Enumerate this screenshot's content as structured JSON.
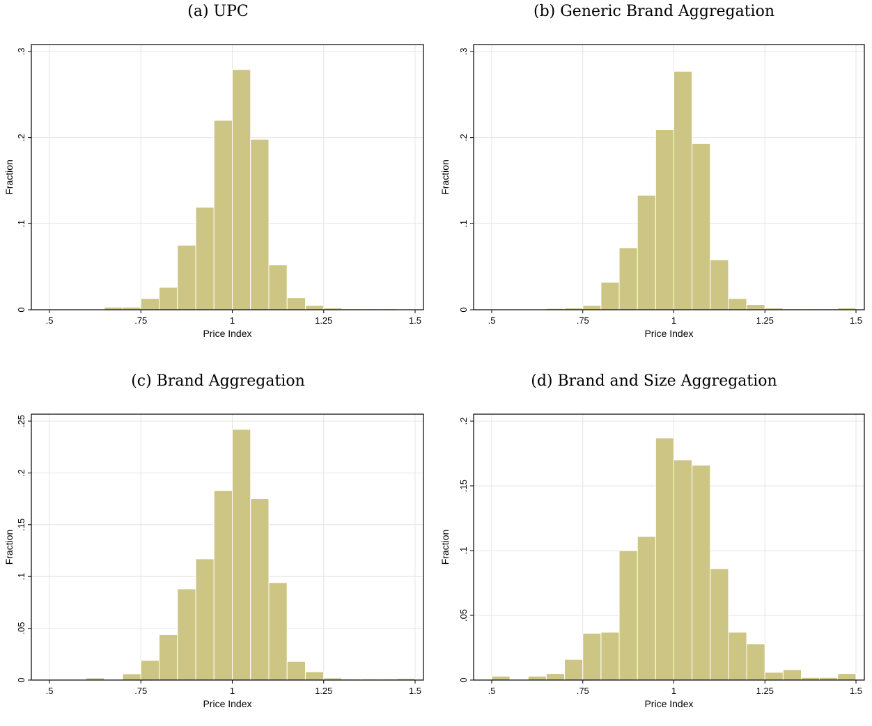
{
  "colors": {
    "bar_fill": "#CCC583",
    "bar_stroke": "#ffffff",
    "grid": "#E4E4E4",
    "frame": "#000000"
  },
  "chart_data": [
    {
      "id": "a",
      "title": "(a) UPC",
      "type": "bar",
      "xlabel": "Price Index",
      "ylabel": "Fraction",
      "xlim": [
        0.5,
        1.5
      ],
      "ylim": [
        0,
        0.3
      ],
      "xticks": [
        0.5,
        0.75,
        1,
        1.25,
        1.5
      ],
      "xtick_labels": [
        ".5",
        ".75",
        "1",
        "1.25",
        "1.5"
      ],
      "yticks": [
        0,
        0.1,
        0.2,
        0.3
      ],
      "ytick_labels": [
        "0",
        ".1",
        ".2",
        ".3"
      ],
      "grid": true,
      "bin_start": 0.5,
      "bin_width": 0.05,
      "values": [
        0.0005,
        0.0005,
        0.0005,
        0.003,
        0.003,
        0.013,
        0.026,
        0.075,
        0.119,
        0.22,
        0.279,
        0.198,
        0.052,
        0.014,
        0.005,
        0.002,
        0.001,
        0.001,
        0.001,
        0.0005
      ]
    },
    {
      "id": "b",
      "title": "(b) Generic Brand Aggregation",
      "type": "bar",
      "xlabel": "Price Index",
      "ylabel": "Fraction",
      "xlim": [
        0.5,
        1.5
      ],
      "ylim": [
        0,
        0.3
      ],
      "xticks": [
        0.5,
        0.75,
        1,
        1.25,
        1.5
      ],
      "xtick_labels": [
        ".5",
        ".75",
        "1",
        "1.25",
        "1.5"
      ],
      "yticks": [
        0,
        0.1,
        0.2,
        0.3
      ],
      "ytick_labels": [
        "0",
        ".1",
        ".2",
        ".3"
      ],
      "grid": true,
      "bin_start": 0.5,
      "bin_width": 0.05,
      "values": [
        0.0005,
        0.0005,
        0.0005,
        0.0015,
        0.002,
        0.005,
        0.032,
        0.072,
        0.133,
        0.209,
        0.277,
        0.193,
        0.058,
        0.013,
        0.006,
        0.002,
        0.001,
        0.001,
        0.001,
        0.002
      ]
    },
    {
      "id": "c",
      "title": "(c) Brand Aggregation",
      "type": "bar",
      "xlabel": "Price Index",
      "ylabel": "Fraction",
      "xlim": [
        0.5,
        1.5
      ],
      "ylim": [
        0,
        0.25
      ],
      "xticks": [
        0.5,
        0.75,
        1,
        1.25,
        1.5
      ],
      "xtick_labels": [
        ".5",
        ".75",
        "1",
        "1.25",
        "1.5"
      ],
      "yticks": [
        0,
        0.05,
        0.1,
        0.15,
        0.2,
        0.25
      ],
      "ytick_labels": [
        "0",
        ".05",
        ".1",
        ".15",
        ".2",
        ".25"
      ],
      "grid": true,
      "bin_start": 0.5,
      "bin_width": 0.05,
      "values": [
        0.0005,
        0.0005,
        0.002,
        0.0005,
        0.006,
        0.019,
        0.044,
        0.088,
        0.117,
        0.183,
        0.242,
        0.175,
        0.094,
        0.018,
        0.008,
        0.002,
        0.001,
        0.001,
        0.001,
        0.0015
      ]
    },
    {
      "id": "d",
      "title": "(d) Brand and Size Aggregation",
      "type": "bar",
      "xlabel": "Price Index",
      "ylabel": "Fraction",
      "xlim": [
        0.5,
        1.5
      ],
      "ylim": [
        0,
        0.2
      ],
      "xticks": [
        0.5,
        0.75,
        1,
        1.25,
        1.5
      ],
      "xtick_labels": [
        ".5",
        ".75",
        "1",
        "1.25",
        "1.5"
      ],
      "yticks": [
        0,
        0.05,
        0.1,
        0.15,
        0.2
      ],
      "ytick_labels": [
        "0",
        ".05",
        ".1",
        ".15",
        ".2"
      ],
      "grid": true,
      "bin_start": 0.5,
      "bin_width": 0.05,
      "values": [
        0.003,
        0.0005,
        0.003,
        0.005,
        0.016,
        0.036,
        0.037,
        0.1,
        0.111,
        0.187,
        0.17,
        0.166,
        0.086,
        0.037,
        0.028,
        0.006,
        0.008,
        0.002,
        0.002,
        0.005
      ]
    }
  ]
}
